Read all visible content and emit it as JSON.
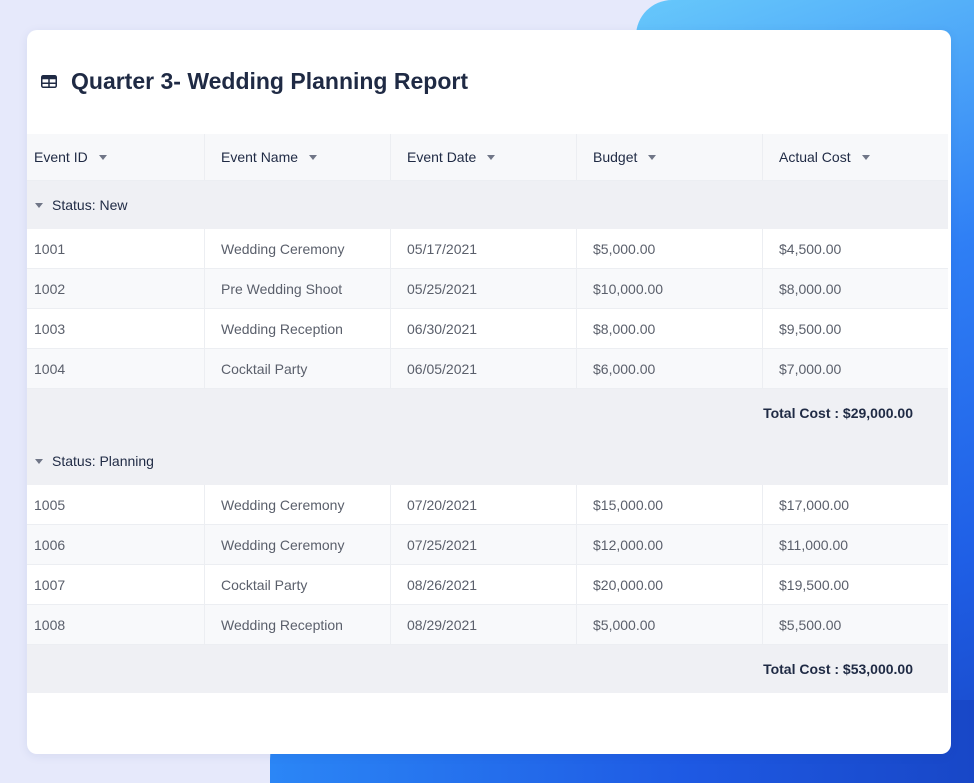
{
  "report": {
    "title": "Quarter 3- Wedding Planning Report",
    "title_icon": "table-icon"
  },
  "columns": [
    {
      "label": "Event ID"
    },
    {
      "label": "Event Name"
    },
    {
      "label": "Event Date"
    },
    {
      "label": "Budget"
    },
    {
      "label": "Actual Cost"
    }
  ],
  "groups": [
    {
      "label": "Status: New",
      "rows": [
        [
          "1001",
          "Wedding Ceremony",
          "05/17/2021",
          "$5,000.00",
          "$4,500.00"
        ],
        [
          "1002",
          "Pre Wedding Shoot",
          "05/25/2021",
          "$10,000.00",
          "$8,000.00"
        ],
        [
          "1003",
          "Wedding Reception",
          "06/30/2021",
          "$8,000.00",
          "$9,500.00"
        ],
        [
          "1004",
          "Cocktail Party",
          "06/05/2021",
          "$6,000.00",
          "$7,000.00"
        ]
      ],
      "total": "Total Cost : $29,000.00"
    },
    {
      "label": "Status: Planning",
      "rows": [
        [
          "1005",
          "Wedding Ceremony",
          "07/20/2021",
          "$15,000.00",
          "$17,000.00"
        ],
        [
          "1006",
          "Wedding Ceremony",
          "07/25/2021",
          "$12,000.00",
          "$11,000.00"
        ],
        [
          "1007",
          "Cocktail Party",
          "08/26/2021",
          "$20,000.00",
          "$19,500.00"
        ],
        [
          "1008",
          "Wedding Reception",
          "08/29/2021",
          "$5,000.00",
          "$5,500.00"
        ]
      ],
      "total": "Total Cost : $53,000.00"
    }
  ],
  "colors": {
    "accent": "#1f5fe6",
    "title_text": "#1f2a44",
    "group_background": "#eff0f4"
  }
}
